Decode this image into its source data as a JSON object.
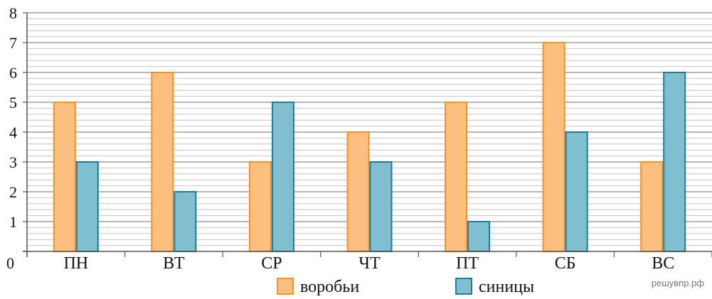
{
  "chart_data": {
    "type": "bar",
    "categories": [
      "ПН",
      "ВТ",
      "СР",
      "ЧТ",
      "ПТ",
      "СБ",
      "ВС"
    ],
    "series": [
      {
        "name": "воробьи",
        "values": [
          5,
          6,
          3,
          4,
          5,
          7,
          3
        ],
        "fill": "#fdbf7f",
        "stroke": "#f39220"
      },
      {
        "name": "синицы",
        "values": [
          3,
          2,
          5,
          3,
          1,
          4,
          6
        ],
        "fill": "#7fbfd0",
        "stroke": "#1b7c9e"
      }
    ],
    "ylim": [
      0,
      8
    ],
    "yticks": [
      "0",
      "1",
      "2",
      "3",
      "4",
      "5",
      "6",
      "7",
      "8"
    ],
    "minor_grid_step": 0.2,
    "grid": true,
    "legend_position": "bottom"
  },
  "watermark": "решувпр.рф"
}
